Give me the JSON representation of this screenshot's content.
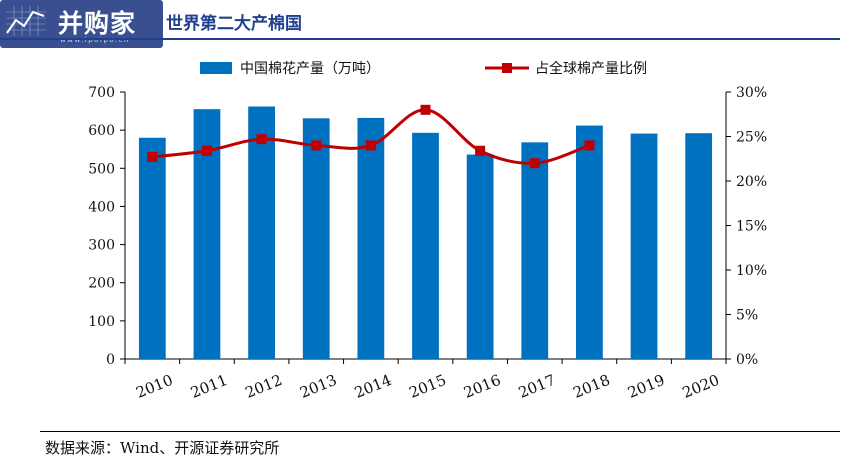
{
  "header": {
    "logo_text": "并购家",
    "logo_url": "www.ipoipo.cn",
    "title": "世界第二大产棉国"
  },
  "source": "数据来源：Wind、开源证券研究所",
  "colors": {
    "bar": "#0070c0",
    "line": "#c00000",
    "title": "#1f3f8f"
  },
  "chart_data": {
    "type": "bar",
    "title": "世界第二大产棉国",
    "categories": [
      "2010",
      "2011",
      "2012",
      "2013",
      "2014",
      "2015",
      "2016",
      "2017",
      "2018",
      "2019",
      "2020"
    ],
    "series": [
      {
        "name": "中国棉花产量（万吨）",
        "type": "bar",
        "axis": "left",
        "values": [
          580,
          655,
          662,
          631,
          632,
          593,
          536,
          568,
          612,
          591,
          592
        ]
      },
      {
        "name": "占全球棉产量比例",
        "type": "line",
        "axis": "right",
        "marker": "square",
        "values": [
          22.7,
          23.4,
          24.7,
          24.0,
          24.0,
          28.0,
          23.4,
          22.0,
          24.0,
          null,
          null
        ]
      }
    ],
    "y_left": {
      "ylim": [
        0,
        700
      ],
      "ticks": [
        0,
        100,
        200,
        300,
        400,
        500,
        600,
        700
      ],
      "tick_labels": [
        "0",
        "100",
        "200",
        "300",
        "400",
        "500",
        "600",
        "700"
      ]
    },
    "y_right": {
      "ylim": [
        0,
        30
      ],
      "ticks": [
        0,
        5,
        10,
        15,
        20,
        25,
        30
      ],
      "tick_labels": [
        "0%",
        "5%",
        "10%",
        "15%",
        "20%",
        "25%",
        "30%"
      ]
    },
    "legend": "top",
    "grid": false
  }
}
